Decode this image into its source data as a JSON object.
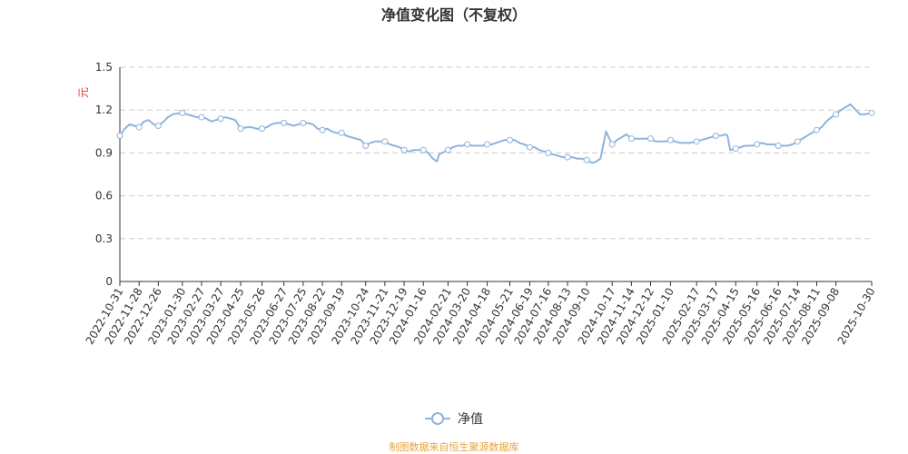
{
  "chart_data": {
    "type": "line",
    "title": "净值变化图（不复权）",
    "ylabel": "元",
    "ylim": [
      0,
      1.5
    ],
    "yticks": [
      "0",
      "0.3",
      "0.6",
      "0.9",
      "1.2",
      "1.5"
    ],
    "grid": "horizontal-dashed",
    "legend_position": "bottom-center",
    "x_tick_labels": [
      "2022-10-31",
      "2022-11-28",
      "2022-12-26",
      "2023-01-30",
      "2023-02-27",
      "2023-03-27",
      "2023-04-25",
      "2023-05-26",
      "2023-06-27",
      "2023-07-25",
      "2023-08-22",
      "2023-09-19",
      "2023-10-24",
      "2023-11-21",
      "2023-12-19",
      "2024-01-16",
      "2024-02-21",
      "2024-03-20",
      "2024-04-18",
      "2024-05-21",
      "2024-06-19",
      "2024-07-16",
      "2024-08-13",
      "2024-09-10",
      "2024-10-17",
      "2024-11-14",
      "2024-12-12",
      "2025-01-10",
      "2025-02-17",
      "2025-03-17",
      "2025-04-15",
      "2025-05-16",
      "2025-06-16",
      "2025-07-14",
      "2025-08-11",
      "2025-09-08",
      "2025-10-30"
    ],
    "series": [
      {
        "name": "净值",
        "color": "#8eb4dc",
        "x": [
          "2022-10-31",
          "2022-11-07",
          "2022-11-14",
          "2022-11-21",
          "2022-11-28",
          "2022-12-05",
          "2022-12-12",
          "2022-12-19",
          "2022-12-26",
          "2023-01-03",
          "2023-01-09",
          "2023-01-16",
          "2023-01-30",
          "2023-02-06",
          "2023-02-13",
          "2023-02-20",
          "2023-02-27",
          "2023-03-06",
          "2023-03-13",
          "2023-03-20",
          "2023-03-27",
          "2023-04-03",
          "2023-04-10",
          "2023-04-17",
          "2023-04-25",
          "2023-05-04",
          "2023-05-11",
          "2023-05-18",
          "2023-05-26",
          "2023-06-02",
          "2023-06-09",
          "2023-06-16",
          "2023-06-27",
          "2023-07-04",
          "2023-07-11",
          "2023-07-18",
          "2023-07-25",
          "2023-08-01",
          "2023-08-08",
          "2023-08-15",
          "2023-08-22",
          "2023-08-29",
          "2023-09-05",
          "2023-09-12",
          "2023-09-19",
          "2023-09-26",
          "2023-10-10",
          "2023-10-17",
          "2023-10-24",
          "2023-10-31",
          "2023-11-07",
          "2023-11-14",
          "2023-11-21",
          "2023-11-28",
          "2023-12-05",
          "2023-12-12",
          "2023-12-19",
          "2023-12-26",
          "2024-01-02",
          "2024-01-09",
          "2024-01-16",
          "2024-01-23",
          "2024-01-30",
          "2024-02-05",
          "2024-02-08",
          "2024-02-21",
          "2024-02-28",
          "2024-03-06",
          "2024-03-13",
          "2024-03-20",
          "2024-03-27",
          "2024-04-03",
          "2024-04-11",
          "2024-04-18",
          "2024-04-25",
          "2024-05-07",
          "2024-05-14",
          "2024-05-21",
          "2024-05-28",
          "2024-06-04",
          "2024-06-11",
          "2024-06-19",
          "2024-06-26",
          "2024-07-03",
          "2024-07-10",
          "2024-07-16",
          "2024-07-23",
          "2024-07-30",
          "2024-08-06",
          "2024-08-13",
          "2024-08-20",
          "2024-08-27",
          "2024-09-03",
          "2024-09-10",
          "2024-09-18",
          "2024-09-24",
          "2024-09-30",
          "2024-10-08",
          "2024-10-17",
          "2024-10-24",
          "2024-10-31",
          "2024-11-07",
          "2024-11-14",
          "2024-11-21",
          "2024-11-28",
          "2024-12-05",
          "2024-12-12",
          "2024-12-19",
          "2024-12-26",
          "2025-01-03",
          "2025-01-10",
          "2025-01-17",
          "2025-01-24",
          "2025-02-07",
          "2025-02-17",
          "2025-02-24",
          "2025-03-03",
          "2025-03-10",
          "2025-03-17",
          "2025-03-24",
          "2025-03-31",
          "2025-04-03",
          "2025-04-07",
          "2025-04-15",
          "2025-04-22",
          "2025-04-29",
          "2025-05-09",
          "2025-05-16",
          "2025-05-23",
          "2025-05-30",
          "2025-06-09",
          "2025-06-16",
          "2025-06-23",
          "2025-06-30",
          "2025-07-07",
          "2025-07-14",
          "2025-07-21",
          "2025-07-28",
          "2025-08-04",
          "2025-08-11",
          "2025-08-18",
          "2025-08-25",
          "2025-09-01",
          "2025-09-08",
          "2025-09-15",
          "2025-09-22",
          "2025-09-29",
          "2025-10-13",
          "2025-10-20",
          "2025-10-30"
        ],
        "values": [
          1.02,
          1.07,
          1.1,
          1.09,
          1.08,
          1.12,
          1.13,
          1.1,
          1.09,
          1.12,
          1.15,
          1.17,
          1.18,
          1.17,
          1.16,
          1.15,
          1.15,
          1.14,
          1.12,
          1.13,
          1.14,
          1.15,
          1.14,
          1.13,
          1.07,
          1.08,
          1.08,
          1.07,
          1.07,
          1.08,
          1.1,
          1.11,
          1.11,
          1.1,
          1.09,
          1.1,
          1.11,
          1.11,
          1.1,
          1.07,
          1.06,
          1.07,
          1.05,
          1.04,
          1.04,
          1.02,
          1.0,
          0.99,
          0.95,
          0.97,
          0.98,
          0.98,
          0.98,
          0.96,
          0.95,
          0.94,
          0.92,
          0.91,
          0.92,
          0.92,
          0.92,
          0.9,
          0.86,
          0.84,
          0.89,
          0.92,
          0.94,
          0.95,
          0.95,
          0.96,
          0.95,
          0.95,
          0.95,
          0.96,
          0.96,
          0.98,
          0.99,
          0.99,
          0.99,
          0.97,
          0.96,
          0.94,
          0.94,
          0.92,
          0.91,
          0.9,
          0.89,
          0.88,
          0.87,
          0.87,
          0.87,
          0.86,
          0.86,
          0.85,
          0.83,
          0.84,
          0.86,
          1.05,
          0.96,
          0.99,
          1.01,
          1.03,
          1.0,
          1.0,
          1.0,
          1.0,
          1.0,
          0.98,
          0.98,
          0.98,
          0.99,
          0.98,
          0.97,
          0.97,
          0.98,
          0.99,
          1.0,
          1.01,
          1.02,
          1.02,
          1.03,
          1.02,
          0.92,
          0.93,
          0.94,
          0.95,
          0.95,
          0.96,
          0.97,
          0.96,
          0.96,
          0.95,
          0.95,
          0.95,
          0.96,
          0.98,
          1.0,
          1.02,
          1.04,
          1.06,
          1.08,
          1.12,
          1.15,
          1.17,
          1.2,
          1.22,
          1.24,
          1.17,
          1.17,
          1.18
        ],
        "markers": [
          "2022-10-31",
          "2022-11-28",
          "2022-12-26",
          "2023-01-30",
          "2023-02-27",
          "2023-03-27",
          "2023-04-25",
          "2023-05-26",
          "2023-06-27",
          "2023-07-25",
          "2023-08-22",
          "2023-09-19",
          "2023-10-24",
          "2023-11-21",
          "2023-12-19",
          "2024-01-16",
          "2024-02-21",
          "2024-03-20",
          "2024-04-18",
          "2024-05-21",
          "2024-06-19",
          "2024-07-16",
          "2024-08-13",
          "2024-09-10",
          "2024-10-17",
          "2024-11-14",
          "2024-12-12",
          "2025-01-10",
          "2025-02-17",
          "2025-03-17",
          "2025-04-15",
          "2025-05-16",
          "2025-06-16",
          "2025-07-14",
          "2025-08-11",
          "2025-09-08",
          "2025-10-30"
        ]
      }
    ]
  },
  "legend": {
    "label": "净值"
  },
  "source": "制图数据来自恒生聚源数据库",
  "colors": {
    "axis": "#333333",
    "grid": "#cccccc",
    "ylabel": "#e03c3c",
    "source": "#e8a33c",
    "line": "#8eb4dc"
  }
}
